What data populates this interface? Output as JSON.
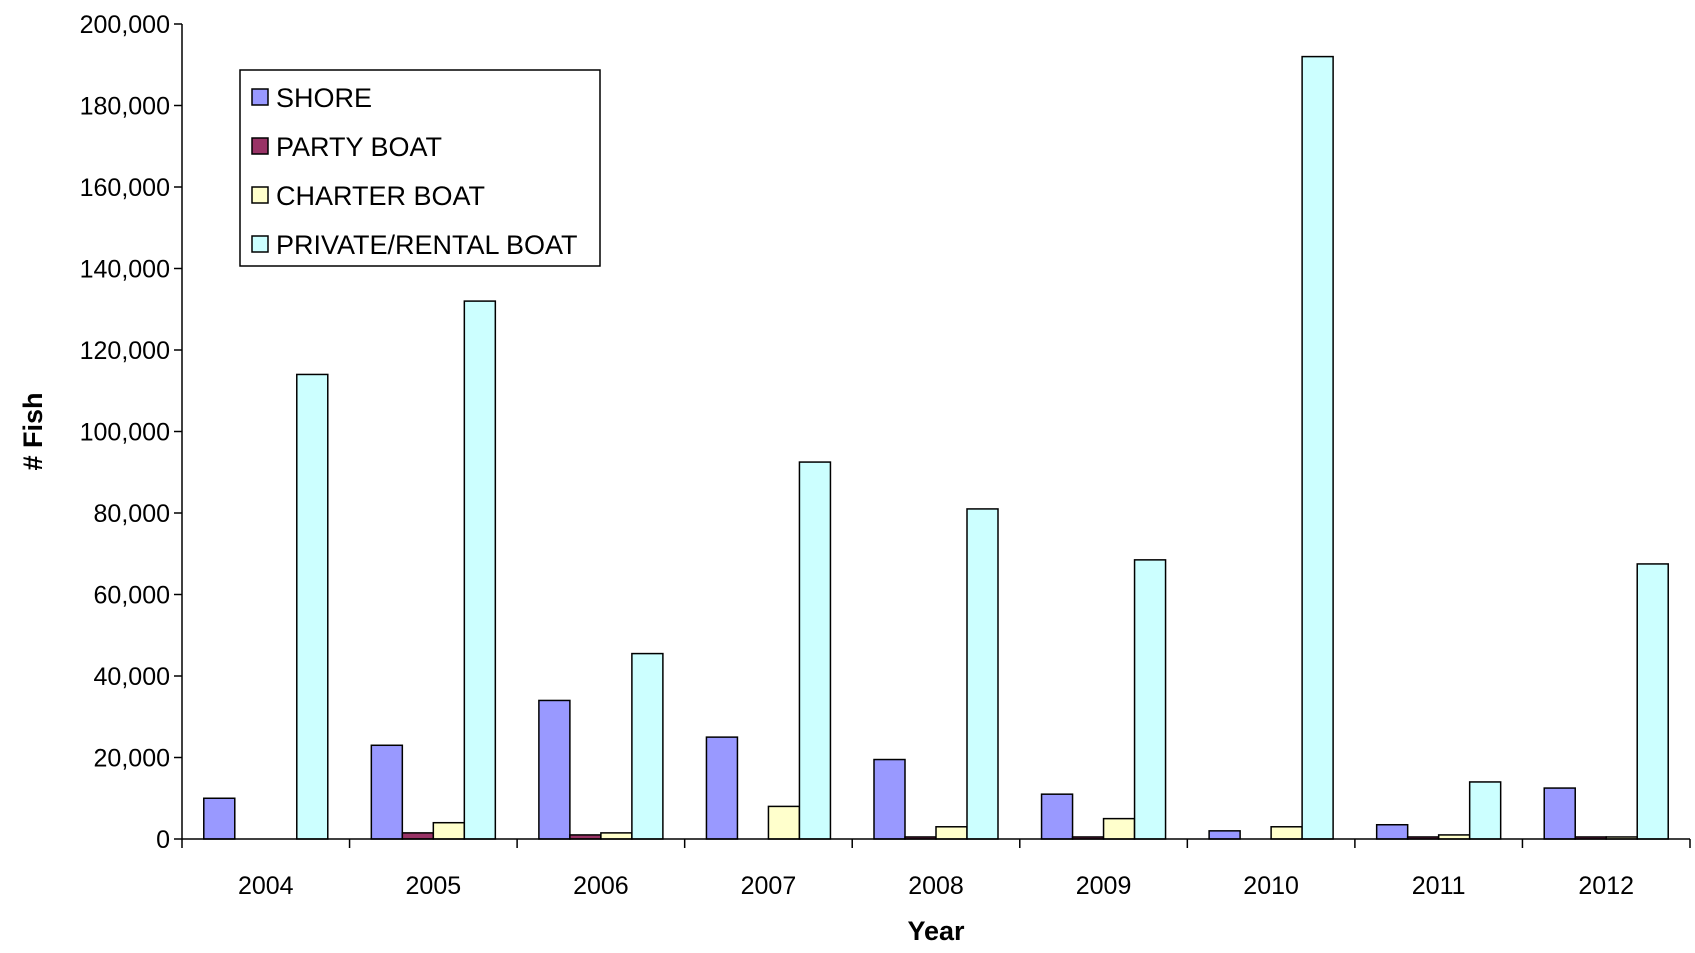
{
  "chart_data": {
    "type": "bar",
    "title": "",
    "xlabel": "Year",
    "ylabel": "# Fish",
    "ylim": [
      0,
      200000
    ],
    "yticks": [
      0,
      20000,
      40000,
      60000,
      80000,
      100000,
      120000,
      140000,
      160000,
      180000,
      200000
    ],
    "ytick_labels": [
      "0",
      "20,000",
      "40,000",
      "60,000",
      "80,000",
      "100,000",
      "120,000",
      "140,000",
      "160,000",
      "180,000",
      "200,000"
    ],
    "categories": [
      "2004",
      "2005",
      "2006",
      "2007",
      "2008",
      "2009",
      "2010",
      "2011",
      "2012"
    ],
    "legend_position": "top-left",
    "grid": false,
    "series": [
      {
        "name": "SHORE",
        "color": "#9999ff",
        "values": [
          10000,
          23000,
          34000,
          25000,
          19500,
          11000,
          2000,
          3500,
          12500
        ]
      },
      {
        "name": "PARTY BOAT",
        "color": "#993366",
        "values": [
          0,
          1500,
          1000,
          0,
          500,
          500,
          0,
          500,
          500
        ]
      },
      {
        "name": "CHARTER BOAT",
        "color": "#ffffcc",
        "values": [
          0,
          4000,
          1500,
          8000,
          3000,
          5000,
          3000,
          1000,
          500
        ]
      },
      {
        "name": "PRIVATE/RENTAL BOAT",
        "color": "#ccffff",
        "values": [
          114000,
          132000,
          45500,
          92500,
          81000,
          68500,
          192000,
          14000,
          67500
        ]
      }
    ]
  }
}
